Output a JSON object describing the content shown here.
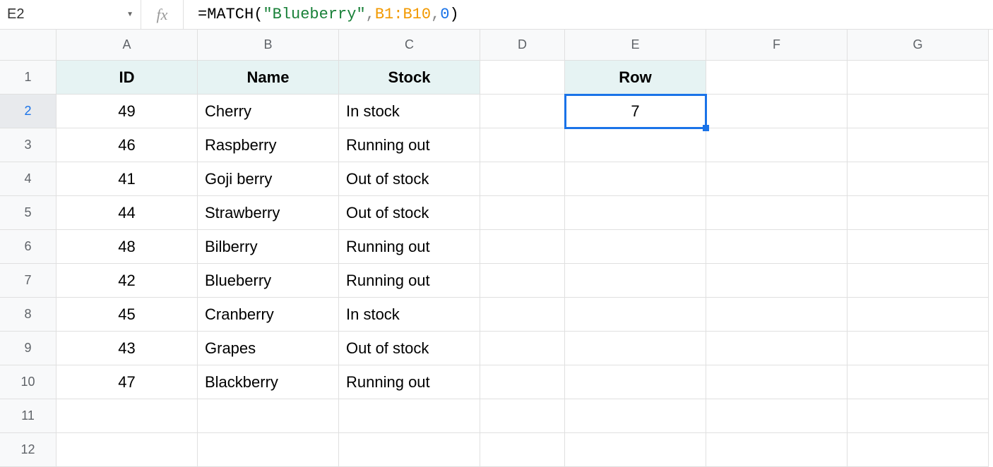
{
  "name_box": "E2",
  "formula": {
    "equals": "=",
    "fn": "MATCH",
    "open": "(",
    "arg1": "\"Blueberry\"",
    "comma1": ",",
    "arg2": "B1:B10",
    "comma2": ",",
    "arg3": "0",
    "close": ")"
  },
  "columns": [
    "A",
    "B",
    "C",
    "D",
    "E",
    "F",
    "G"
  ],
  "row_count": 12,
  "selected_cell": "E2",
  "selected_row": 2,
  "headers": {
    "A": "ID",
    "B": "Name",
    "C": "Stock",
    "E": "Row"
  },
  "data": {
    "2": {
      "A": "49",
      "B": "Cherry",
      "C": "In stock",
      "E": "7"
    },
    "3": {
      "A": "46",
      "B": "Raspberry",
      "C": "Running out"
    },
    "4": {
      "A": "41",
      "B": "Goji berry",
      "C": "Out of stock"
    },
    "5": {
      "A": "44",
      "B": "Strawberry",
      "C": "Out of stock"
    },
    "6": {
      "A": "48",
      "B": "Bilberry",
      "C": "Running out"
    },
    "7": {
      "A": "42",
      "B": "Blueberry",
      "C": "Running out"
    },
    "8": {
      "A": "45",
      "B": "Cranberry",
      "C": "In stock"
    },
    "9": {
      "A": "43",
      "B": "Grapes",
      "C": "Out of stock"
    },
    "10": {
      "A": "47",
      "B": "Blackberry",
      "C": "Running out"
    }
  },
  "header_bg": "#e6f3f3",
  "selection_color": "#1a73e8",
  "column_width_classes": {
    "A": "w-a",
    "B": "w-b",
    "C": "w-c",
    "D": "w-d",
    "E": "w-e",
    "F": "w-f",
    "G": "w-g"
  },
  "center_columns": [
    "A",
    "E"
  ]
}
